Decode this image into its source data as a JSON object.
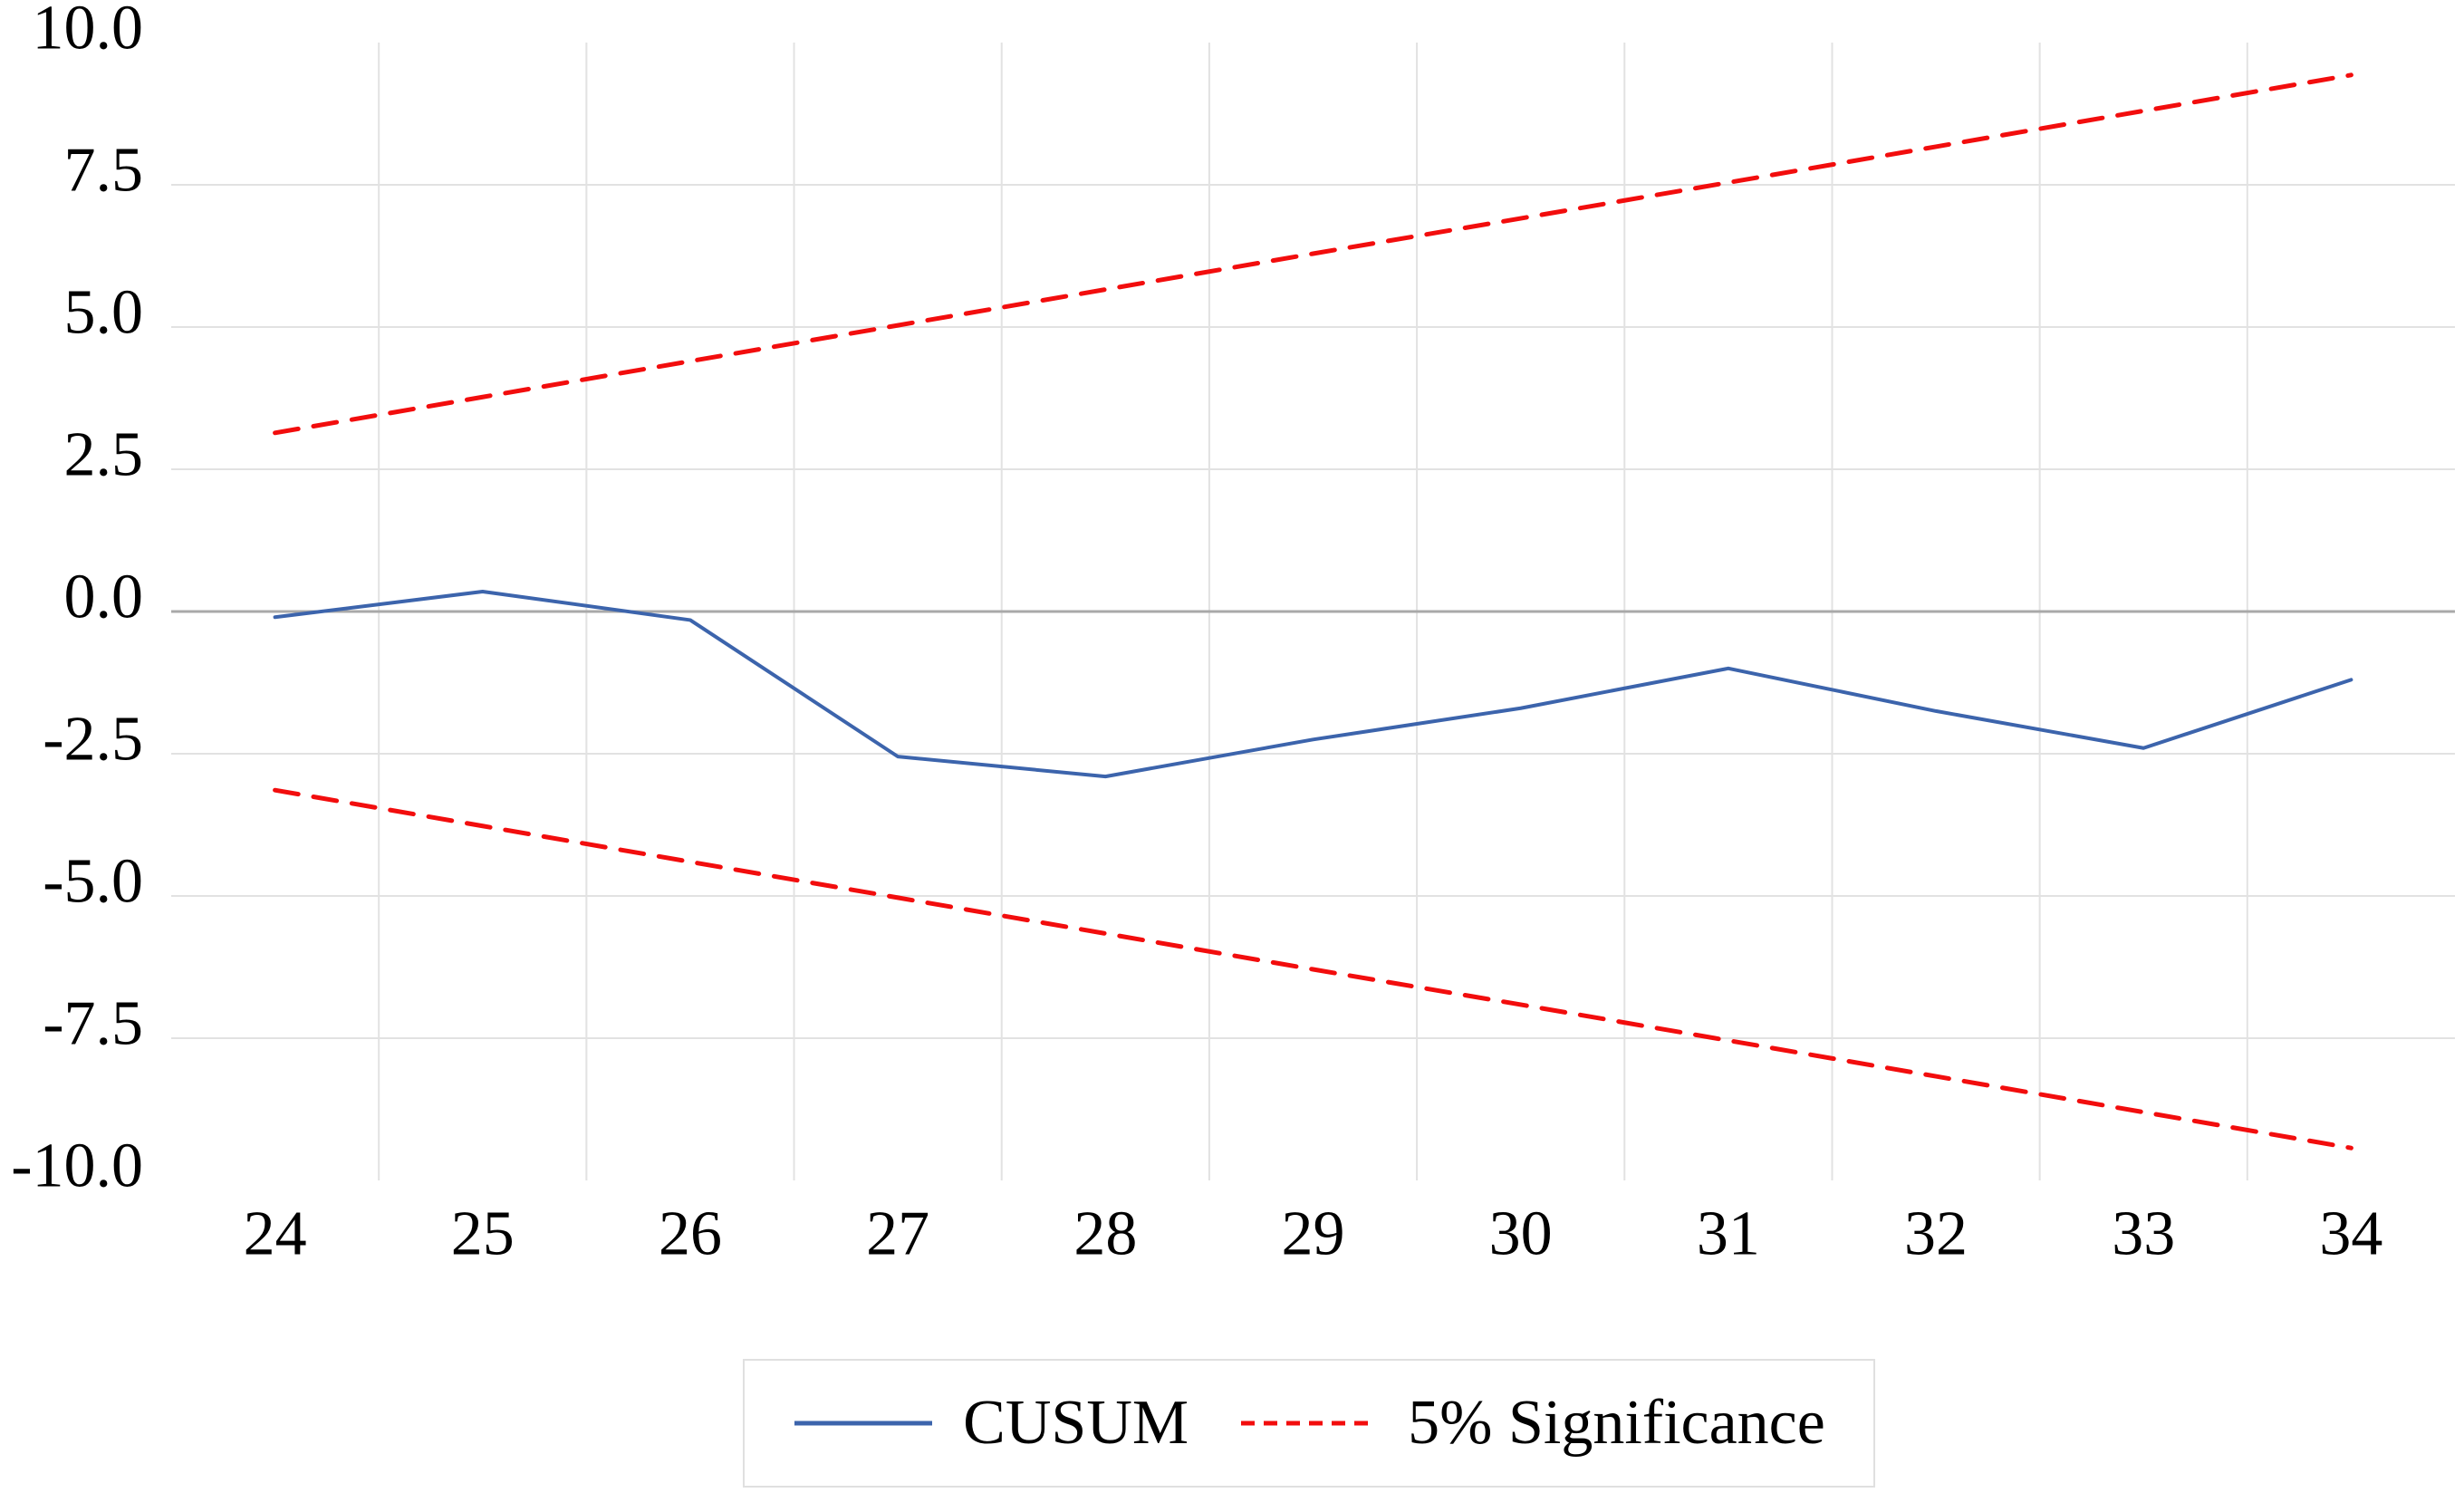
{
  "chart_data": {
    "type": "line",
    "title": "",
    "xlabel": "",
    "ylabel": "",
    "x": [
      24,
      25,
      26,
      27,
      28,
      29,
      30,
      31,
      32,
      33,
      34
    ],
    "x_tick_labels": [
      "24",
      "25",
      "26",
      "27",
      "28",
      "29",
      "30",
      "31",
      "32",
      "33",
      "34"
    ],
    "y_tick_values": [
      10,
      7.5,
      5,
      2.5,
      0,
      -2.5,
      -5,
      -7.5,
      -10
    ],
    "y_tick_labels": [
      "10.0",
      "7.5",
      "5.0",
      "2.5",
      "0.0",
      "-2.5",
      "-5.0",
      "-7.5",
      "-10.0"
    ],
    "ylim": [
      -10,
      10
    ],
    "grid": true,
    "legend_position": "bottom",
    "series": [
      {
        "name": "CUSUM",
        "style": "solid",
        "color": "#3C64AC",
        "width": 4,
        "values": [
          -0.1,
          0.35,
          -0.15,
          -2.55,
          -2.9,
          -2.25,
          -1.7,
          -1.0,
          -1.75,
          -2.4,
          -1.2
        ]
      },
      {
        "name": "5% Significance (upper bound)",
        "style": "dashed",
        "color": "#F20D0D",
        "width": 5,
        "values": [
          3.14,
          3.77,
          4.4,
          5.03,
          5.66,
          6.29,
          6.91,
          7.54,
          8.17,
          8.8,
          9.43
        ]
      },
      {
        "name": "5% Significance (lower bound)",
        "style": "dashed",
        "color": "#F20D0D",
        "width": 5,
        "values": [
          -3.14,
          -3.77,
          -4.4,
          -5.03,
          -5.66,
          -6.29,
          -6.91,
          -7.54,
          -8.17,
          -8.8,
          -9.43
        ]
      }
    ],
    "grid_color": "#e2e2e2",
    "zero_line_color": "#a9a9a9",
    "text_color": "#000000"
  },
  "legend": {
    "entries": [
      {
        "label": "CUSUM"
      },
      {
        "label": "5% Significance"
      }
    ]
  }
}
